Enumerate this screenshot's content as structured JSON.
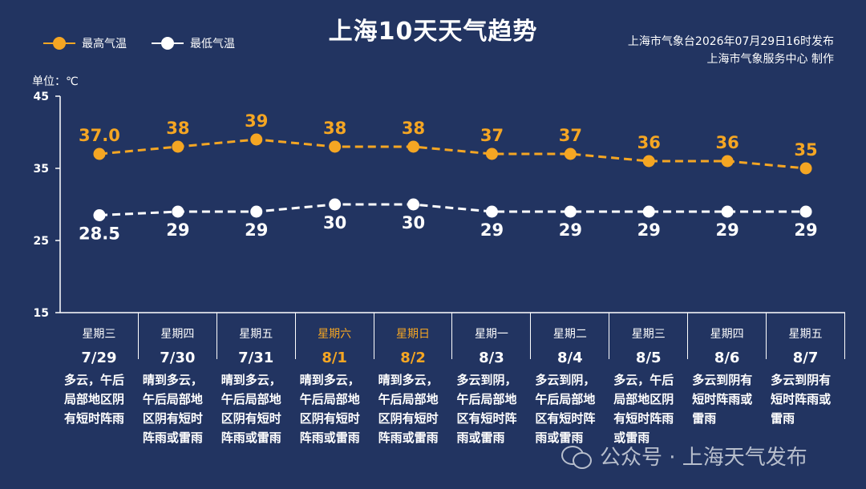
{
  "title": "上海10天天气趋势",
  "source_line1": "上海市气象台2026年07月29日16时发布",
  "source_line2": "上海市气象服务中心 制作",
  "unit_label": "单位：℃",
  "watermark": "公众号 · 上海天气发布",
  "colors": {
    "background": "#223461",
    "high": "#f5a623",
    "low": "#ffffff"
  },
  "days": [
    {
      "weekday": "星期三",
      "date": "7/29",
      "weekend": false,
      "desc": "多云，午后局部地区阴有短时阵雨"
    },
    {
      "weekday": "星期四",
      "date": "7/30",
      "weekend": false,
      "desc": "晴到多云，午后局部地区阴有短时阵雨或雷雨"
    },
    {
      "weekday": "星期五",
      "date": "7/31",
      "weekend": false,
      "desc": "晴到多云，午后局部地区阴有短时阵雨或雷雨"
    },
    {
      "weekday": "星期六",
      "date": "8/1",
      "weekend": true,
      "desc": "晴到多云，午后局部地区阴有短时阵雨或雷雨"
    },
    {
      "weekday": "星期日",
      "date": "8/2",
      "weekend": true,
      "desc": "晴到多云，午后局部地区阴有短时阵雨或雷雨"
    },
    {
      "weekday": "星期一",
      "date": "8/3",
      "weekend": false,
      "desc": "多云到阴，午后局部地区有短时阵雨或雷雨"
    },
    {
      "weekday": "星期二",
      "date": "8/4",
      "weekend": false,
      "desc": "多云到阴，午后局部地区有短时阵雨或雷雨"
    },
    {
      "weekday": "星期三",
      "date": "8/5",
      "weekend": false,
      "desc": "多云，午后局部地区阴有短时阵雨或雷雨"
    },
    {
      "weekday": "星期四",
      "date": "8/6",
      "weekend": false,
      "desc": "多云到阴有短时阵雨或雷雨"
    },
    {
      "weekday": "星期五",
      "date": "8/7",
      "weekend": false,
      "desc": "多云到阴有短时阵雨或雷雨"
    }
  ],
  "chart_data": {
    "type": "line",
    "title": "上海10天天气趋势",
    "categories": [
      "7/29",
      "7/30",
      "7/31",
      "8/1",
      "8/2",
      "8/3",
      "8/4",
      "8/5",
      "8/6",
      "8/7"
    ],
    "series": [
      {
        "name": "最高气温",
        "values": [
          37.0,
          38,
          39,
          38,
          38,
          37,
          37,
          36,
          36,
          35
        ],
        "labels": [
          "37.0",
          "38",
          "39",
          "38",
          "38",
          "37",
          "37",
          "36",
          "36",
          "35"
        ],
        "color": "#f5a623"
      },
      {
        "name": "最低气温",
        "values": [
          28.5,
          29,
          29,
          30,
          30,
          29,
          29,
          29,
          29,
          29
        ],
        "labels": [
          "28.5",
          "29",
          "29",
          "30",
          "30",
          "29",
          "29",
          "29",
          "29",
          "29"
        ],
        "color": "#ffffff"
      }
    ],
    "ylim": [
      15,
      45
    ],
    "yticks": [
      15,
      25,
      35,
      45
    ],
    "ylabel": "单位：℃",
    "legend": "top-left",
    "grid": false,
    "line_style": "dashed"
  }
}
